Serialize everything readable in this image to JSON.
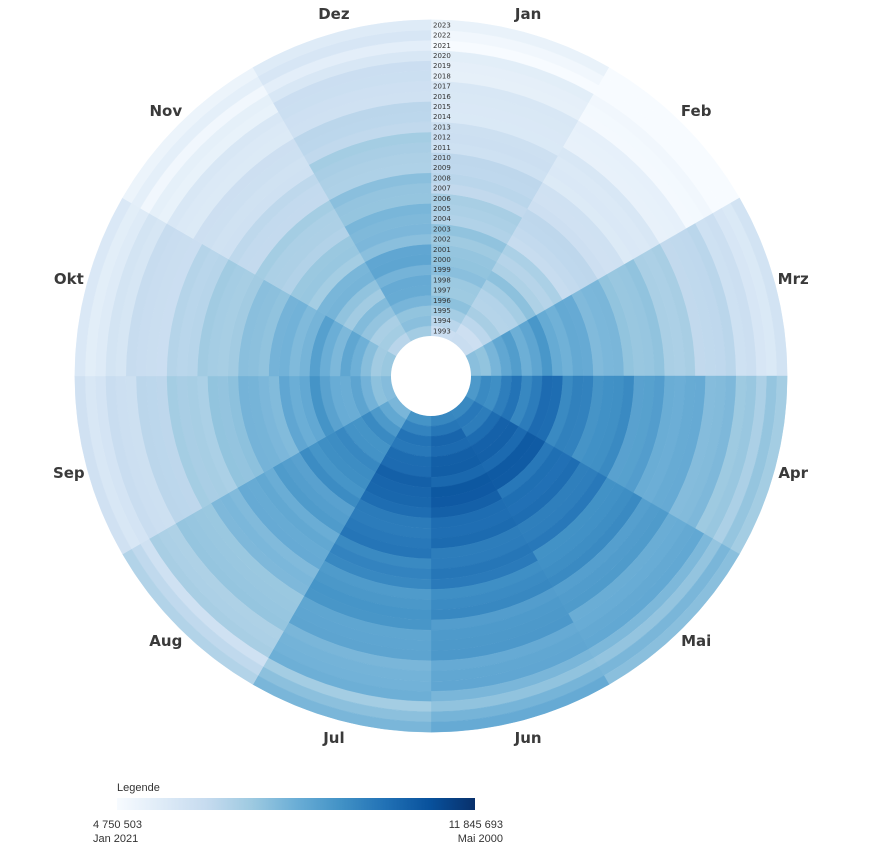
{
  "chart_data": {
    "type": "heatmap",
    "layout": "radial",
    "months": [
      "Jan",
      "Feb",
      "Mrz",
      "Apr",
      "Mai",
      "Jun",
      "Jul",
      "Aug",
      "Sep",
      "Okt",
      "Nov",
      "Dez"
    ],
    "years": [
      1993,
      1994,
      1995,
      1996,
      1997,
      1998,
      1999,
      2000,
      2001,
      2002,
      2003,
      2004,
      2005,
      2006,
      2007,
      2008,
      2009,
      2010,
      2011,
      2012,
      2013,
      2014,
      2015,
      2016,
      2017,
      2018,
      2019,
      2020,
      2021,
      2022,
      2023
    ],
    "color_min": "#f7fbff",
    "color_max": "#08306b",
    "min": {
      "value": 4750503,
      "label": "4 750 503",
      "period": "Jan 2021"
    },
    "max": {
      "value": 11845693,
      "label": "11 845 693",
      "period": "Mai 2000"
    },
    "month_levels": [
      0.28,
      0.22,
      0.42,
      0.6,
      0.68,
      0.7,
      0.66,
      0.52,
      0.42,
      0.38,
      0.3,
      0.38
    ],
    "year_trend": [
      -0.02,
      0.02,
      0.06,
      0.1,
      0.12,
      0.1,
      0.12,
      0.16,
      0.13,
      0.08,
      0.09,
      0.06,
      0.05,
      0.04,
      0.02,
      0.02,
      -0.02,
      -0.04,
      -0.05,
      -0.06,
      -0.09,
      -0.1,
      -0.12,
      -0.14,
      -0.16,
      -0.17,
      -0.19,
      -0.2,
      -0.28,
      -0.24,
      -0.22
    ]
  },
  "legend": {
    "title": "Legende"
  }
}
